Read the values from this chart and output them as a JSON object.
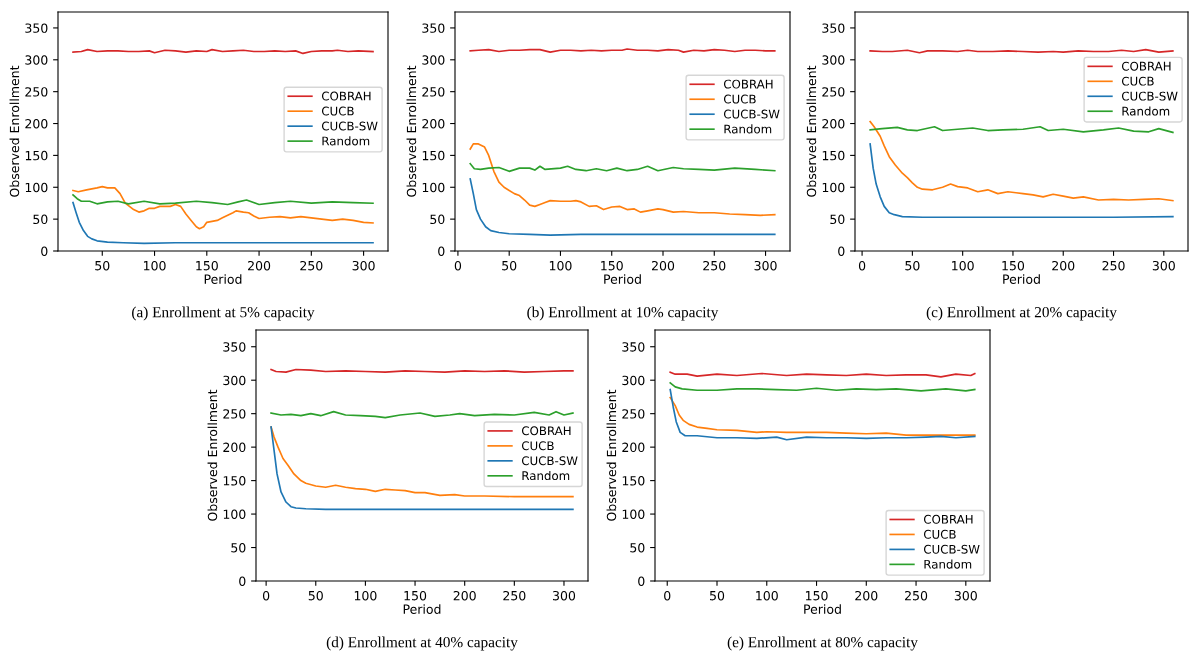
{
  "chart_data": [
    {
      "type": "line",
      "title": "(a) Enrollment at 5% capacity",
      "xlabel": "Period",
      "ylabel": "Observed Enrollment",
      "xlim": [
        7.65,
        323.35
      ],
      "xticks": [
        50,
        100,
        150,
        200,
        250,
        300
      ],
      "ylim": [
        0,
        375
      ],
      "yticks": [
        0,
        50,
        100,
        150,
        200,
        250,
        300,
        350
      ],
      "legend": "right",
      "grid": false,
      "series": [
        {
          "name": "COBRAH",
          "color": "#d62728",
          "x": [
            22,
            30,
            36,
            45,
            55,
            65,
            75,
            85,
            95,
            100,
            110,
            120,
            130,
            140,
            150,
            155,
            165,
            175,
            185,
            195,
            205,
            215,
            225,
            235,
            242,
            250,
            260,
            270,
            275,
            285,
            295,
            309
          ],
          "values": [
            312,
            313,
            316,
            313,
            314,
            314,
            313,
            313,
            314,
            311,
            315,
            314,
            312,
            314,
            313,
            316,
            313,
            314,
            315,
            313,
            313,
            314,
            313,
            314,
            310,
            313,
            314,
            314,
            315,
            313,
            314,
            313
          ]
        },
        {
          "name": "CUCB",
          "color": "#ff7f0e",
          "x": [
            22,
            27,
            35,
            45,
            50,
            55,
            62,
            67,
            72,
            80,
            85,
            90,
            95,
            100,
            105,
            115,
            120,
            125,
            130,
            135,
            140,
            143,
            147,
            150,
            160,
            165,
            175,
            178,
            185,
            190,
            195,
            200,
            210,
            220,
            230,
            240,
            250,
            260,
            270,
            280,
            290,
            300,
            309
          ],
          "values": [
            95,
            93,
            96,
            99,
            101,
            99,
            99,
            90,
            75,
            65,
            61,
            63,
            67,
            67,
            70,
            70,
            73,
            70,
            58,
            48,
            38,
            35,
            38,
            45,
            48,
            52,
            60,
            63,
            61,
            60,
            55,
            51,
            53,
            54,
            52,
            54,
            52,
            50,
            48,
            50,
            48,
            45,
            44
          ]
        },
        {
          "name": "CUCB-SW",
          "color": "#1f77b4",
          "x": [
            22,
            25,
            28,
            32,
            36,
            40,
            45,
            55,
            70,
            90,
            120,
            150,
            200,
            250,
            309
          ],
          "values": [
            76,
            60,
            45,
            32,
            23,
            19,
            16,
            14,
            13,
            12,
            13,
            13,
            13,
            13,
            13
          ]
        },
        {
          "name": "Random",
          "color": "#2ca02c",
          "x": [
            22,
            26,
            30,
            38,
            45,
            55,
            65,
            75,
            90,
            105,
            120,
            140,
            155,
            170,
            180,
            188,
            200,
            215,
            230,
            250,
            270,
            290,
            309
          ],
          "values": [
            88,
            82,
            78,
            78,
            74,
            77,
            78,
            74,
            78,
            74,
            75,
            78,
            76,
            73,
            77,
            80,
            73,
            76,
            78,
            75,
            77,
            76,
            75
          ]
        }
      ]
    },
    {
      "type": "line",
      "title": "(b) Enrollment at 10% capacity",
      "xlabel": "Period",
      "ylabel": "Observed Enrollment",
      "xlim": [
        -2.85,
        323.85
      ],
      "xticks": [
        0,
        50,
        100,
        150,
        200,
        250,
        300
      ],
      "ylim": [
        0,
        375
      ],
      "yticks": [
        0,
        50,
        100,
        150,
        200,
        250,
        300,
        350
      ],
      "legend": "right",
      "grid": false,
      "series": [
        {
          "name": "COBRAH",
          "color": "#d62728",
          "x": [
            12,
            20,
            30,
            40,
            50,
            60,
            70,
            80,
            90,
            100,
            110,
            120,
            130,
            140,
            150,
            160,
            165,
            175,
            185,
            195,
            205,
            215,
            220,
            230,
            240,
            250,
            260,
            270,
            280,
            290,
            300,
            309
          ],
          "values": [
            314,
            315,
            316,
            313,
            315,
            315,
            316,
            316,
            312,
            315,
            315,
            314,
            315,
            314,
            315,
            315,
            317,
            315,
            315,
            314,
            316,
            315,
            312,
            315,
            314,
            316,
            315,
            313,
            315,
            315,
            314,
            314
          ]
        },
        {
          "name": "CUCB",
          "color": "#ff7f0e",
          "x": [
            12,
            15,
            20,
            26,
            30,
            35,
            40,
            45,
            55,
            60,
            65,
            70,
            75,
            80,
            85,
            90,
            100,
            110,
            115,
            120,
            128,
            135,
            142,
            150,
            158,
            165,
            172,
            178,
            185,
            195,
            200,
            210,
            220,
            235,
            250,
            265,
            280,
            295,
            309
          ],
          "values": [
            160,
            168,
            168,
            163,
            150,
            125,
            108,
            100,
            90,
            87,
            80,
            72,
            70,
            73,
            76,
            79,
            78,
            78,
            79,
            77,
            70,
            71,
            65,
            69,
            70,
            65,
            66,
            61,
            63,
            66,
            65,
            61,
            62,
            60,
            60,
            58,
            57,
            56,
            57
          ]
        },
        {
          "name": "CUCB-SW",
          "color": "#1f77b4",
          "x": [
            12,
            15,
            18,
            22,
            27,
            32,
            40,
            50,
            70,
            90,
            120,
            200,
            309
          ],
          "values": [
            113,
            90,
            65,
            50,
            38,
            32,
            29,
            27,
            26,
            25,
            26,
            26,
            26
          ]
        },
        {
          "name": "Random",
          "color": "#2ca02c",
          "x": [
            12,
            16,
            22,
            30,
            40,
            50,
            60,
            70,
            75,
            80,
            85,
            100,
            107,
            115,
            125,
            135,
            145,
            155,
            165,
            175,
            185,
            195,
            210,
            220,
            235,
            250,
            270,
            290,
            309
          ],
          "values": [
            137,
            129,
            128,
            130,
            131,
            125,
            130,
            130,
            127,
            133,
            128,
            130,
            133,
            128,
            126,
            129,
            126,
            130,
            126,
            128,
            133,
            126,
            131,
            129,
            128,
            127,
            130,
            128,
            126
          ]
        }
      ]
    },
    {
      "type": "line",
      "title": "(c) Enrollment at 20% capacity",
      "xlabel": "Period",
      "ylabel": "Observed Enrollment",
      "xlim": [
        -7.05,
        324.05
      ],
      "xticks": [
        0,
        50,
        100,
        150,
        200,
        250,
        300
      ],
      "ylim": [
        0,
        375
      ],
      "yticks": [
        0,
        50,
        100,
        150,
        200,
        250,
        300,
        350
      ],
      "legend": "right",
      "grid": false,
      "series": [
        {
          "name": "COBRAH",
          "color": "#d62728",
          "x": [
            8,
            20,
            30,
            45,
            57,
            65,
            80,
            95,
            105,
            115,
            130,
            145,
            160,
            175,
            190,
            200,
            215,
            230,
            245,
            258,
            270,
            282,
            295,
            309
          ],
          "values": [
            314,
            313,
            313,
            315,
            311,
            314,
            314,
            313,
            315,
            313,
            313,
            314,
            313,
            312,
            313,
            312,
            314,
            313,
            313,
            315,
            313,
            316,
            312,
            314
          ]
        },
        {
          "name": "CUCB",
          "color": "#ff7f0e",
          "x": [
            8,
            12,
            18,
            22,
            27,
            33,
            40,
            45,
            50,
            55,
            60,
            70,
            80,
            88,
            95,
            105,
            115,
            125,
            135,
            145,
            160,
            170,
            180,
            190,
            200,
            210,
            220,
            235,
            250,
            265,
            280,
            295,
            309
          ],
          "values": [
            203,
            195,
            180,
            165,
            148,
            135,
            122,
            115,
            107,
            100,
            97,
            96,
            100,
            105,
            101,
            99,
            93,
            96,
            90,
            93,
            90,
            88,
            85,
            89,
            86,
            83,
            85,
            80,
            81,
            80,
            81,
            82,
            79
          ]
        },
        {
          "name": "CUCB-SW",
          "color": "#1f77b4",
          "x": [
            8,
            11,
            14,
            18,
            22,
            27,
            32,
            40,
            60,
            100,
            150,
            200,
            250,
            309
          ],
          "values": [
            168,
            130,
            105,
            85,
            70,
            60,
            57,
            54,
            53,
            53,
            53,
            53,
            53,
            54
          ]
        },
        {
          "name": "Random",
          "color": "#2ca02c",
          "x": [
            8,
            20,
            35,
            45,
            55,
            72,
            80,
            95,
            110,
            125,
            140,
            160,
            177,
            185,
            200,
            220,
            240,
            255,
            270,
            285,
            295,
            309
          ],
          "values": [
            190,
            192,
            194,
            190,
            189,
            195,
            189,
            191,
            193,
            189,
            190,
            191,
            195,
            189,
            191,
            187,
            190,
            193,
            188,
            187,
            192,
            186
          ]
        }
      ]
    },
    {
      "type": "line",
      "title": "(d) Enrollment at 40% capacity",
      "xlabel": "Period",
      "ylabel": "Observed Enrollment",
      "xlim": [
        -10.2,
        324.2
      ],
      "xticks": [
        0,
        50,
        100,
        150,
        200,
        250,
        300
      ],
      "ylim": [
        0,
        375
      ],
      "yticks": [
        0,
        50,
        100,
        150,
        200,
        250,
        300,
        350
      ],
      "legend": "right",
      "grid": false,
      "series": [
        {
          "name": "COBRAH",
          "color": "#d62728",
          "x": [
            5,
            10,
            20,
            30,
            45,
            60,
            80,
            100,
            120,
            140,
            160,
            180,
            200,
            220,
            240,
            260,
            280,
            300,
            309
          ],
          "values": [
            316,
            313,
            312,
            316,
            315,
            313,
            314,
            313,
            312,
            314,
            313,
            312,
            314,
            313,
            314,
            312,
            313,
            314,
            314
          ]
        },
        {
          "name": "CUCB",
          "color": "#ff7f0e",
          "x": [
            5,
            8,
            12,
            17,
            22,
            28,
            35,
            40,
            50,
            60,
            70,
            80,
            90,
            100,
            110,
            120,
            130,
            140,
            150,
            160,
            175,
            190,
            200,
            220,
            250,
            280,
            309
          ],
          "values": [
            230,
            215,
            200,
            183,
            173,
            160,
            150,
            146,
            142,
            140,
            143,
            140,
            138,
            137,
            134,
            137,
            136,
            135,
            132,
            132,
            128,
            129,
            127,
            127,
            126,
            126,
            126
          ]
        },
        {
          "name": "CUCB-SW",
          "color": "#1f77b4",
          "x": [
            5,
            8,
            11,
            15,
            20,
            25,
            30,
            40,
            60,
            100,
            150,
            200,
            250,
            309
          ],
          "values": [
            230,
            195,
            160,
            133,
            118,
            111,
            109,
            108,
            107,
            107,
            107,
            107,
            107,
            107
          ]
        },
        {
          "name": "Random",
          "color": "#2ca02c",
          "x": [
            5,
            15,
            25,
            35,
            45,
            55,
            68,
            80,
            95,
            110,
            120,
            135,
            155,
            170,
            185,
            195,
            210,
            230,
            250,
            270,
            285,
            292,
            300,
            309
          ],
          "values": [
            251,
            248,
            249,
            247,
            250,
            247,
            253,
            248,
            247,
            246,
            244,
            248,
            251,
            246,
            248,
            250,
            247,
            249,
            248,
            252,
            248,
            253,
            248,
            251
          ]
        }
      ]
    },
    {
      "type": "line",
      "title": "(e) Enrollment at 80% capacity",
      "xlabel": "Period",
      "ylabel": "Observed Enrollment",
      "xlim": [
        -12.3,
        324.3
      ],
      "xticks": [
        0,
        50,
        100,
        150,
        200,
        250,
        300
      ],
      "ylim": [
        0,
        375
      ],
      "yticks": [
        0,
        50,
        100,
        150,
        200,
        250,
        300,
        350
      ],
      "legend": "lower right",
      "grid": false,
      "series": [
        {
          "name": "COBRAH",
          "color": "#d62728",
          "x": [
            3,
            8,
            20,
            30,
            50,
            70,
            95,
            120,
            140,
            160,
            180,
            200,
            220,
            240,
            260,
            275,
            290,
            305,
            309
          ],
          "values": [
            312,
            309,
            309,
            306,
            309,
            307,
            310,
            307,
            309,
            308,
            307,
            309,
            307,
            308,
            308,
            305,
            309,
            307,
            310
          ]
        },
        {
          "name": "CUCB",
          "color": "#ff7f0e",
          "x": [
            3,
            8,
            12,
            16,
            22,
            30,
            40,
            50,
            70,
            90,
            100,
            120,
            140,
            160,
            180,
            200,
            220,
            240,
            260,
            280,
            300,
            309
          ],
          "values": [
            274,
            262,
            248,
            240,
            234,
            230,
            228,
            226,
            225,
            222,
            223,
            222,
            222,
            222,
            221,
            220,
            221,
            218,
            218,
            218,
            218,
            218
          ]
        },
        {
          "name": "CUCB-SW",
          "color": "#1f77b4",
          "x": [
            3,
            6,
            9,
            13,
            18,
            30,
            50,
            70,
            90,
            110,
            120,
            140,
            160,
            180,
            200,
            220,
            240,
            260,
            275,
            290,
            309
          ],
          "values": [
            286,
            260,
            238,
            222,
            217,
            217,
            214,
            214,
            213,
            215,
            211,
            215,
            214,
            214,
            213,
            214,
            214,
            215,
            216,
            214,
            216
          ]
        },
        {
          "name": "Random",
          "color": "#2ca02c",
          "x": [
            3,
            8,
            15,
            30,
            50,
            70,
            90,
            110,
            130,
            150,
            170,
            190,
            210,
            230,
            255,
            280,
            300,
            309
          ],
          "values": [
            296,
            290,
            287,
            285,
            285,
            287,
            287,
            286,
            285,
            288,
            285,
            287,
            286,
            287,
            284,
            287,
            284,
            286
          ]
        }
      ]
    }
  ]
}
